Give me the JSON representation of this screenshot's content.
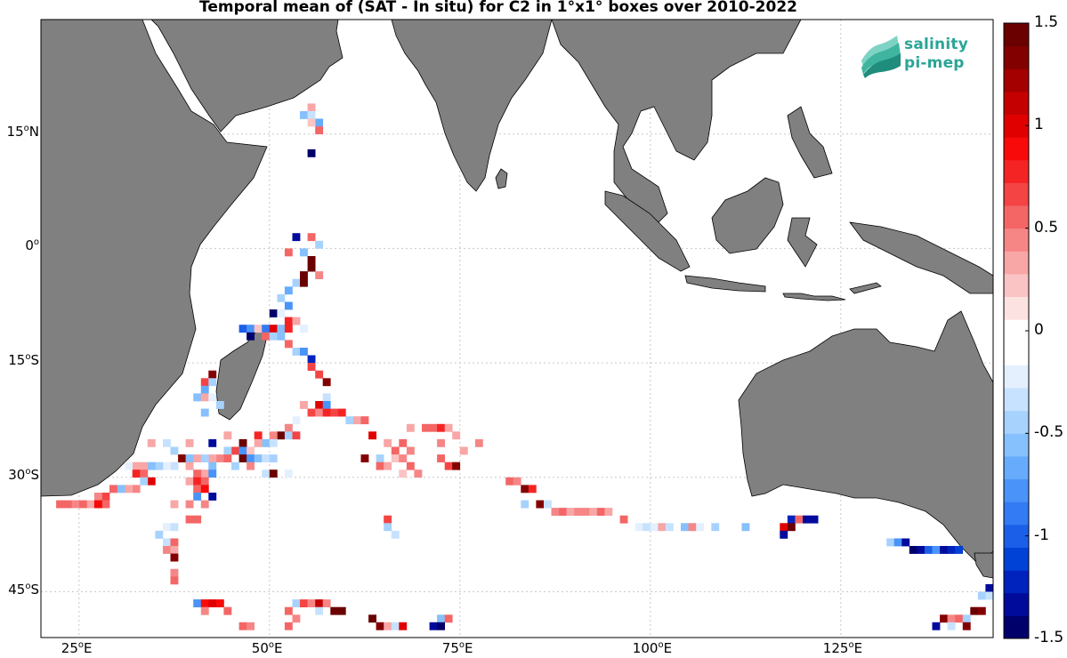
{
  "title": "Temporal mean of (SAT - In situ) for C2 in 1°x1° boxes over 2010-2022",
  "logo": {
    "line1": "salinity",
    "line2": "pi-mep"
  },
  "lat_ticks": [
    {
      "value": 15,
      "deg": "15",
      "hemi": "N"
    },
    {
      "value": 0,
      "deg": "0",
      "hemi": ""
    },
    {
      "value": -15,
      "deg": "15",
      "hemi": "S"
    },
    {
      "value": -30,
      "deg": "30",
      "hemi": "S"
    },
    {
      "value": -45,
      "deg": "45",
      "hemi": "S"
    }
  ],
  "lon_ticks": [
    {
      "value": 25,
      "deg": "25",
      "hemi": "E"
    },
    {
      "value": 50,
      "deg": "50",
      "hemi": "E"
    },
    {
      "value": 75,
      "deg": "75",
      "hemi": "E"
    },
    {
      "value": 100,
      "deg": "100",
      "hemi": "E"
    },
    {
      "value": 125,
      "deg": "125",
      "hemi": "E"
    }
  ],
  "colorbar": {
    "min": -1.5,
    "max": 1.5,
    "tick_labels": [
      "1.5",
      "1",
      "0.5",
      "0",
      "-0.5",
      "-1",
      "-1.5"
    ],
    "tick_values": [
      1.5,
      1,
      0.5,
      0,
      -0.5,
      -1,
      -1.5
    ],
    "colors": [
      "#00006b",
      "#000b9c",
      "#0023bd",
      "#0042d6",
      "#1b5fe9",
      "#327bf4",
      "#4a93f9",
      "#66abfc",
      "#86c0fd",
      "#a7d2fe",
      "#c7e2fe",
      "#e4f0fe",
      "#ffffff",
      "#ffffff",
      "#fde2e2",
      "#fbc4c4",
      "#f8a6a6",
      "#f68686",
      "#f46666",
      "#f44444",
      "#f52424",
      "#f80a0a",
      "#e00000",
      "#c40000",
      "#a40000",
      "#830000",
      "#6a0000"
    ]
  },
  "chart_data": {
    "type": "heatmap",
    "title": "Temporal mean of (SAT - In situ) for C2 in 1°x1° boxes over 2010-2022",
    "lon_range": [
      20,
      145
    ],
    "lat_range": [
      -51,
      30
    ],
    "cell_size_deg": 1,
    "value_range": [
      -1.5,
      1.5
    ],
    "cells": [
      [
        55,
        18,
        0.3
      ],
      [
        54,
        17,
        -0.6
      ],
      [
        55,
        17,
        -0.3
      ],
      [
        56,
        16,
        -0.7
      ],
      [
        55,
        16,
        0.2
      ],
      [
        56,
        15,
        0.6
      ],
      [
        55,
        12,
        -1.4
      ],
      [
        53,
        1,
        -1.3
      ],
      [
        55,
        1,
        0.6
      ],
      [
        56,
        0,
        -0.4
      ],
      [
        52,
        -1,
        0.6
      ],
      [
        54,
        -1,
        -0.6
      ],
      [
        55,
        -2,
        1.4
      ],
      [
        55,
        -3,
        1.5
      ],
      [
        54,
        -4,
        1.4
      ],
      [
        56,
        -4,
        0.4
      ],
      [
        53,
        -5,
        -0.4
      ],
      [
        54,
        -5,
        1.4
      ],
      [
        52,
        -6,
        -0.7
      ],
      [
        51,
        -7,
        -0.4
      ],
      [
        52,
        -8,
        -0.8
      ],
      [
        50,
        -9,
        -1.4
      ],
      [
        51,
        -9,
        -0.2
      ],
      [
        52,
        -10,
        0.8
      ],
      [
        53,
        -10,
        0.3
      ],
      [
        46,
        -11,
        -1.0
      ],
      [
        47,
        -11,
        -0.8
      ],
      [
        48,
        -11,
        0.2
      ],
      [
        49,
        -11,
        -0.9
      ],
      [
        50,
        -11,
        1.0
      ],
      [
        51,
        -11,
        -0.6
      ],
      [
        52,
        -11,
        0.8
      ],
      [
        54,
        -11,
        -0.2
      ],
      [
        47,
        -12,
        -1.4
      ],
      [
        49,
        -12,
        0.6
      ],
      [
        50,
        -12,
        -0.5
      ],
      [
        51,
        -12,
        -0.6
      ],
      [
        52,
        -13,
        0.6
      ],
      [
        53,
        -14,
        -0.4
      ],
      [
        54,
        -14,
        -0.8
      ],
      [
        55,
        -15,
        -1.2
      ],
      [
        55,
        -16,
        0.7
      ],
      [
        56,
        -17,
        0.7
      ],
      [
        57,
        -18,
        1.3
      ],
      [
        42,
        -17,
        1.3
      ],
      [
        41,
        -18,
        0.7
      ],
      [
        42,
        -18,
        -0.5
      ],
      [
        41,
        -19,
        -0.7
      ],
      [
        40,
        -20,
        -0.6
      ],
      [
        41,
        -20,
        0.3
      ],
      [
        42,
        -20,
        -0.2
      ],
      [
        43,
        -21,
        -0.5
      ],
      [
        41,
        -22,
        -0.6
      ],
      [
        57,
        -20,
        -0.3
      ],
      [
        56,
        -21,
        1.0
      ],
      [
        57,
        -21,
        -0.8
      ],
      [
        54,
        -21,
        0.3
      ],
      [
        55,
        -22,
        0.7
      ],
      [
        56,
        -22,
        0.4
      ],
      [
        57,
        -22,
        0.8
      ],
      [
        58,
        -22,
        0.7
      ],
      [
        59,
        -22,
        0.8
      ],
      [
        60,
        -23,
        -0.5
      ],
      [
        61,
        -23,
        0.3
      ],
      [
        62,
        -23,
        0.5
      ],
      [
        53,
        -23,
        -0.2
      ],
      [
        52,
        -24,
        0.4
      ],
      [
        51,
        -25,
        1.5
      ],
      [
        52,
        -25,
        -0.4
      ],
      [
        53,
        -25,
        0.7
      ],
      [
        50,
        -25,
        0.4
      ],
      [
        48,
        -25,
        0.8
      ],
      [
        49,
        -26,
        -0.6
      ],
      [
        50,
        -26,
        -0.3
      ],
      [
        48,
        -26,
        0.3
      ],
      [
        46,
        -26,
        1.4
      ],
      [
        45,
        -27,
        0.7
      ],
      [
        46,
        -27,
        -0.8
      ],
      [
        47,
        -27,
        0.2
      ],
      [
        44,
        -27,
        -0.5
      ],
      [
        43,
        -28,
        0.4
      ],
      [
        42,
        -28,
        0.3
      ],
      [
        44,
        -28,
        0.6
      ],
      [
        46,
        -28,
        1.4
      ],
      [
        47,
        -28,
        -0.8
      ],
      [
        48,
        -28,
        -0.6
      ],
      [
        49,
        -28,
        -0.3
      ],
      [
        50,
        -28,
        -0.5
      ],
      [
        45,
        -29,
        -0.4
      ],
      [
        47,
        -29,
        0.4
      ],
      [
        52,
        -30,
        -0.2
      ],
      [
        49,
        -30,
        -0.3
      ],
      [
        50,
        -30,
        1.5
      ],
      [
        63,
        -25,
        1.0
      ],
      [
        65,
        -26,
        0.3
      ],
      [
        67,
        -26,
        0.6
      ],
      [
        66,
        -27,
        0.5
      ],
      [
        68,
        -27,
        0.4
      ],
      [
        62,
        -28,
        1.3
      ],
      [
        64,
        -28,
        -0.5
      ],
      [
        66,
        -28,
        0.2
      ],
      [
        67,
        -28,
        0.4
      ],
      [
        64,
        -29,
        0.5
      ],
      [
        65,
        -29,
        0.3
      ],
      [
        68,
        -29,
        0.5
      ],
      [
        69,
        -30,
        0.4
      ],
      [
        67,
        -30,
        0.2
      ],
      [
        68,
        -24,
        0.3
      ],
      [
        70,
        -24,
        0.6
      ],
      [
        71,
        -24,
        0.5
      ],
      [
        72,
        -24,
        0.8
      ],
      [
        73,
        -24,
        0.3
      ],
      [
        74,
        -25,
        0.3
      ],
      [
        72,
        -26,
        0.4
      ],
      [
        72,
        -28,
        0.5
      ],
      [
        73,
        -29,
        0.7
      ],
      [
        74,
        -29,
        1.3
      ],
      [
        75,
        -27,
        0.3
      ],
      [
        77,
        -26,
        0.4
      ],
      [
        34,
        -26,
        0.3
      ],
      [
        36,
        -26,
        -0.3
      ],
      [
        37,
        -27,
        -0.4
      ],
      [
        39,
        -26,
        0.3
      ],
      [
        42,
        -26,
        -1.3
      ],
      [
        44,
        -25,
        0.3
      ],
      [
        38,
        -28,
        1.3
      ],
      [
        39,
        -28,
        -0.6
      ],
      [
        40,
        -28,
        0.3
      ],
      [
        41,
        -28,
        -0.4
      ],
      [
        42,
        -29,
        -0.6
      ],
      [
        41,
        -30,
        0.3
      ],
      [
        42,
        -30,
        -0.8
      ],
      [
        40,
        -30,
        0.5
      ],
      [
        39,
        -31,
        0.3
      ],
      [
        39,
        -29,
        0.3
      ],
      [
        37,
        -29,
        -0.3
      ],
      [
        36,
        -29,
        -0.2
      ],
      [
        35,
        -29,
        -0.4
      ],
      [
        34,
        -29,
        -0.6
      ],
      [
        33,
        -29,
        0.3
      ],
      [
        32,
        -29,
        0.3
      ],
      [
        31,
        -29,
        -0.2
      ],
      [
        32,
        -30,
        0.8
      ],
      [
        33,
        -30,
        0.6
      ],
      [
        34,
        -31,
        1.0
      ],
      [
        33,
        -31,
        -0.5
      ],
      [
        32,
        -32,
        0.4
      ],
      [
        31,
        -32,
        0.3
      ],
      [
        30,
        -32,
        -0.6
      ],
      [
        29,
        -32,
        0.5
      ],
      [
        28,
        -33,
        0.7
      ],
      [
        27,
        -33,
        0.4
      ],
      [
        28,
        -34,
        0.6
      ],
      [
        26,
        -34,
        0.3
      ],
      [
        25,
        -34,
        0.6
      ],
      [
        24,
        -34,
        0.4
      ],
      [
        23,
        -34,
        0.6
      ],
      [
        22,
        -34,
        0.5
      ],
      [
        27,
        -34,
        0.9
      ],
      [
        40,
        -31,
        0.8
      ],
      [
        41,
        -31,
        0.6
      ],
      [
        40,
        -32,
        0.5
      ],
      [
        41,
        -32,
        0.9
      ],
      [
        42,
        -33,
        -1.3
      ],
      [
        40,
        -33,
        -0.8
      ],
      [
        39,
        -34,
        0.4
      ],
      [
        37,
        -34,
        0.3
      ],
      [
        41,
        -34,
        0.4
      ],
      [
        39,
        -36,
        0.6
      ],
      [
        40,
        -36,
        0.6
      ],
      [
        36,
        -37,
        -0.2
      ],
      [
        37,
        -37,
        -0.3
      ],
      [
        35,
        -38,
        -0.5
      ],
      [
        36,
        -39,
        -0.3
      ],
      [
        37,
        -39,
        0.6
      ],
      [
        36,
        -40,
        0.4
      ],
      [
        37,
        -40,
        0.3
      ],
      [
        37,
        -41,
        1.3
      ],
      [
        37,
        -43,
        0.4
      ],
      [
        37,
        -44,
        0.5
      ],
      [
        40,
        -47,
        -0.8
      ],
      [
        41,
        -47,
        0.9
      ],
      [
        42,
        -47,
        1.0
      ],
      [
        43,
        -47,
        0.9
      ],
      [
        41,
        -48,
        0.4
      ],
      [
        44,
        -48,
        0.5
      ],
      [
        46,
        -50,
        0.5
      ],
      [
        47,
        -50,
        0.4
      ],
      [
        53,
        -47,
        -0.5
      ],
      [
        54,
        -47,
        0.7
      ],
      [
        55,
        -47,
        0.4
      ],
      [
        56,
        -47,
        1.1
      ],
      [
        57,
        -47,
        0.4
      ],
      [
        52,
        -48,
        0.5
      ],
      [
        56,
        -48,
        -0.3
      ],
      [
        58,
        -48,
        1.4
      ],
      [
        59,
        -48,
        1.5
      ],
      [
        53,
        -49,
        0.4
      ],
      [
        52,
        -50,
        0.6
      ],
      [
        65,
        -36,
        0.7
      ],
      [
        65,
        -37,
        -0.5
      ],
      [
        66,
        -38,
        -0.3
      ],
      [
        81,
        -31,
        0.5
      ],
      [
        82,
        -31,
        0.4
      ],
      [
        83,
        -32,
        1.3
      ],
      [
        84,
        -32,
        0.8
      ],
      [
        83,
        -34,
        -0.5
      ],
      [
        85,
        -34,
        1.3
      ],
      [
        86,
        -34,
        -0.3
      ],
      [
        87,
        -35,
        0.4
      ],
      [
        88,
        -35,
        0.5
      ],
      [
        89,
        -35,
        0.3
      ],
      [
        90,
        -35,
        0.4
      ],
      [
        91,
        -35,
        0.4
      ],
      [
        92,
        -35,
        0.3
      ],
      [
        93,
        -35,
        0.5
      ],
      [
        94,
        -35,
        0.3
      ],
      [
        96,
        -36,
        0.6
      ],
      [
        98,
        -37,
        -0.2
      ],
      [
        99,
        -37,
        -0.3
      ],
      [
        100,
        -37,
        -0.2
      ],
      [
        101,
        -37,
        0.3
      ],
      [
        102,
        -37,
        -0.3
      ],
      [
        104,
        -37,
        -0.6
      ],
      [
        105,
        -37,
        0.4
      ],
      [
        106,
        -37,
        -0.2
      ],
      [
        108,
        -37,
        -0.5
      ],
      [
        112,
        -37,
        -0.6
      ],
      [
        117,
        -37,
        1.0
      ],
      [
        118,
        -36,
        -1.2
      ],
      [
        119,
        -36,
        0.5
      ],
      [
        120,
        -36,
        -1.3
      ],
      [
        121,
        -36,
        -1.3
      ],
      [
        117,
        -38,
        -1.3
      ],
      [
        118,
        -37,
        1.5
      ],
      [
        131,
        -39,
        -0.4
      ],
      [
        132,
        -39,
        -0.8
      ],
      [
        133,
        -39,
        -1.3
      ],
      [
        134,
        -40,
        -1.4
      ],
      [
        135,
        -40,
        -1.3
      ],
      [
        136,
        -40,
        -1.0
      ],
      [
        137,
        -40,
        -0.8
      ],
      [
        138,
        -40,
        -1.3
      ],
      [
        139,
        -40,
        -1.2
      ],
      [
        140,
        -40,
        -1.1
      ],
      [
        144,
        -45,
        -1.3
      ],
      [
        145,
        -45,
        -1.2
      ],
      [
        143,
        -46,
        -0.5
      ],
      [
        144,
        -46,
        -0.3
      ],
      [
        142,
        -48,
        1.5
      ],
      [
        143,
        -48,
        1.3
      ],
      [
        138,
        -49,
        1.3
      ],
      [
        139,
        -49,
        0.4
      ],
      [
        140,
        -49,
        0.5
      ],
      [
        141,
        -49,
        -0.5
      ],
      [
        137,
        -50,
        -1.3
      ],
      [
        139,
        -50,
        -0.3
      ],
      [
        141,
        -50,
        1.3
      ],
      [
        63,
        -49,
        1.4
      ],
      [
        64,
        -50,
        1.3
      ],
      [
        65,
        -50,
        0.3
      ],
      [
        66,
        -50,
        -0.3
      ],
      [
        67,
        -50,
        1.0
      ],
      [
        72,
        -49,
        -0.6
      ],
      [
        73,
        -49,
        0.6
      ],
      [
        71,
        -50,
        -1.3
      ],
      [
        72,
        -50,
        -1.4
      ]
    ]
  }
}
